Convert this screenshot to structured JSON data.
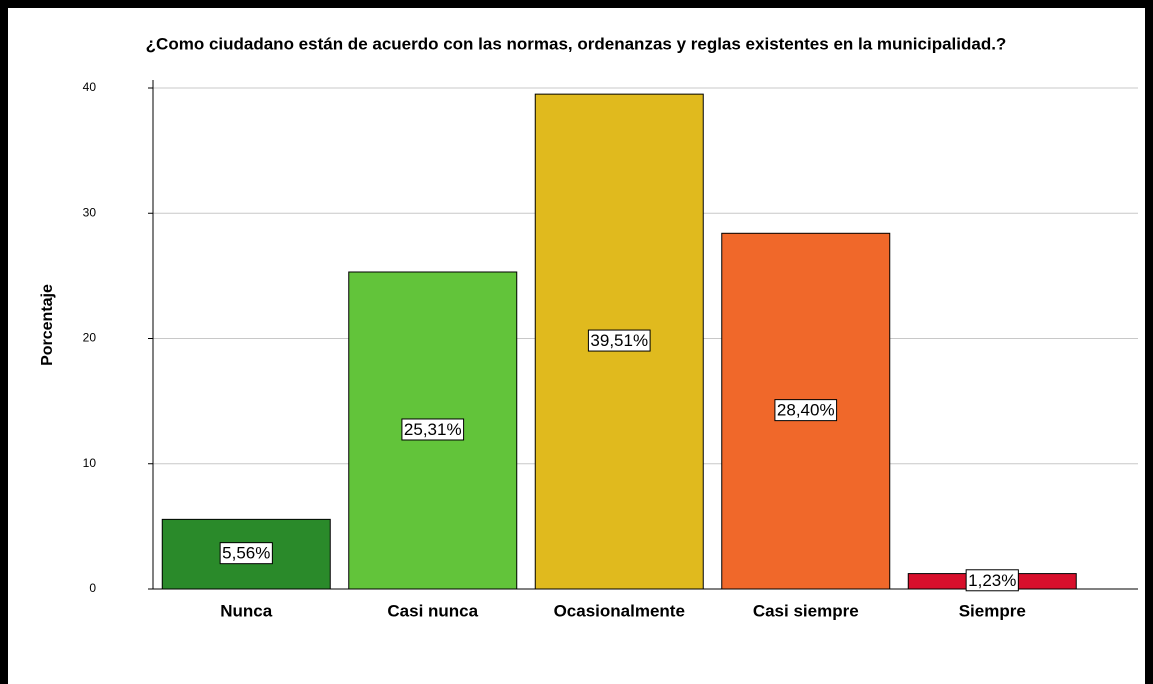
{
  "chart_data": {
    "type": "bar",
    "title": "¿Como ciudadano están de acuerdo con las normas, ordenanzas y reglas existentes en la municipalidad.?",
    "y_label": "Porcentaje",
    "categories": [
      "Nunca",
      "Casi nunca",
      "Ocasionalmente",
      "Casi siempre",
      "Siempre"
    ],
    "values": [
      5.56,
      25.31,
      39.51,
      28.4,
      1.23
    ],
    "value_labels": [
      "5,56%",
      "25,31%",
      "39,51%",
      "28,40%",
      "1,23%"
    ],
    "colors": [
      "#2a8a2a",
      "#62c43a",
      "#e0ba1e",
      "#f0682a",
      "#d8102c"
    ],
    "ylim": [
      0,
      40
    ],
    "yticks": [
      0,
      10,
      20,
      30,
      40
    ],
    "grid": true
  }
}
